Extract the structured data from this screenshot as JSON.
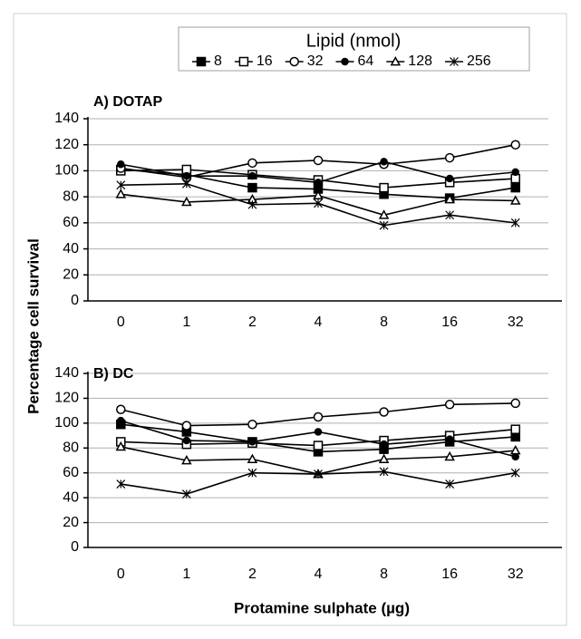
{
  "chart_data": [
    {
      "type": "line",
      "title": "A) DOTAP",
      "legend_title": "Lipid (nmol)",
      "ylabel": "Percentage cell survival",
      "categories": [
        "0",
        "1",
        "2",
        "4",
        "8",
        "16",
        "32"
      ],
      "ylim": [
        0,
        140
      ],
      "yticks": [
        0,
        20,
        40,
        60,
        80,
        100,
        120,
        140
      ],
      "grid": true,
      "series": [
        {
          "name": "8",
          "color": "#000000",
          "marker": "square-filled",
          "values": [
            101,
            97,
            87,
            86,
            82,
            79,
            87
          ]
        },
        {
          "name": "16",
          "color": "#000000",
          "marker": "square-open",
          "values": [
            100,
            101,
            97,
            93,
            87,
            91,
            94
          ]
        },
        {
          "name": "32",
          "color": "#000000",
          "marker": "circle-open",
          "values": [
            102,
            95,
            106,
            108,
            105,
            110,
            120
          ]
        },
        {
          "name": "64",
          "color": "#000000",
          "marker": "circle-filled",
          "values": [
            105,
            96,
            96,
            91,
            107,
            94,
            99
          ]
        },
        {
          "name": "128",
          "color": "#000000",
          "marker": "triangle-open",
          "values": [
            82,
            76,
            78,
            81,
            66,
            78,
            77
          ]
        },
        {
          "name": "256",
          "color": "#000000",
          "marker": "star",
          "values": [
            89,
            90,
            74,
            75,
            58,
            66,
            60
          ]
        }
      ]
    },
    {
      "type": "line",
      "title": "B) DC",
      "xlabel": "Protamine sulphate (µg)",
      "categories": [
        "0",
        "1",
        "2",
        "4",
        "8",
        "16",
        "32"
      ],
      "ylim": [
        0,
        140
      ],
      "yticks": [
        0,
        20,
        40,
        60,
        80,
        100,
        120,
        140
      ],
      "grid": true,
      "series": [
        {
          "name": "8",
          "color": "#000000",
          "marker": "square-filled",
          "values": [
            99,
            93,
            85,
            77,
            79,
            85,
            89
          ]
        },
        {
          "name": "16",
          "color": "#000000",
          "marker": "square-open",
          "values": [
            85,
            83,
            84,
            82,
            86,
            90,
            95
          ]
        },
        {
          "name": "32",
          "color": "#000000",
          "marker": "circle-open",
          "values": [
            111,
            98,
            99,
            105,
            109,
            115,
            116
          ]
        },
        {
          "name": "64",
          "color": "#000000",
          "marker": "circle-filled",
          "values": [
            102,
            86,
            85,
            93,
            83,
            87,
            73
          ]
        },
        {
          "name": "128",
          "color": "#000000",
          "marker": "triangle-open",
          "values": [
            81,
            70,
            71,
            59,
            71,
            73,
            78
          ]
        },
        {
          "name": "256",
          "color": "#000000",
          "marker": "star",
          "values": [
            51,
            43,
            60,
            59,
            61,
            51,
            60
          ]
        }
      ]
    }
  ]
}
